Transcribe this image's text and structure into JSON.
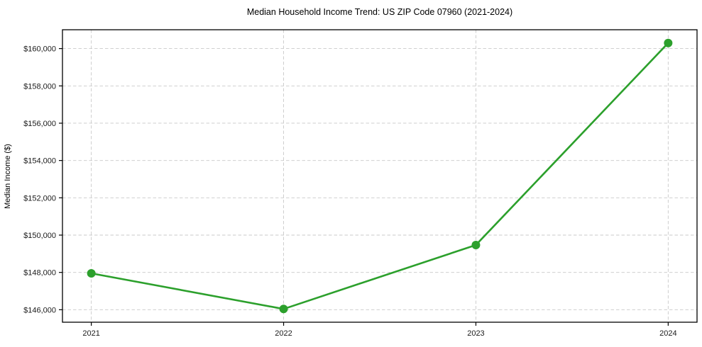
{
  "chart": {
    "title": "Median Household Income Trend: US ZIP Code 07960 (2021-2024)",
    "ylabel": "Median Income ($)"
  },
  "chart_data": {
    "type": "line",
    "title": "Median Household Income Trend: US ZIP Code 07960 (2021-2024)",
    "xlabel": "",
    "ylabel": "Median Income ($)",
    "x": [
      2021,
      2022,
      2023,
      2024
    ],
    "series": [
      {
        "name": "Median Household Income",
        "values": [
          147950,
          146040,
          149470,
          160300
        ]
      }
    ],
    "xlim": [
      2020.85,
      2024.15
    ],
    "ylim": [
      145330,
      161010
    ],
    "xticks": [
      2021,
      2022,
      2023,
      2024
    ],
    "xtick_labels": [
      "2021",
      "2022",
      "2023",
      "2024"
    ],
    "yticks": [
      146000,
      148000,
      150000,
      152000,
      154000,
      156000,
      158000,
      160000
    ],
    "ytick_labels": [
      "$146,000",
      "$148,000",
      "$150,000",
      "$152,000",
      "$154,000",
      "$156,000",
      "$158,000",
      "$160,000"
    ],
    "grid": true,
    "grid_style": "dashed",
    "legend": false,
    "line_color": "#2ca02c",
    "marker": "circle",
    "marker_size": 12,
    "line_width": 2.6,
    "grid_color": "#c9c9c9",
    "axis_color": "#000000",
    "tick_color": "#000000"
  }
}
